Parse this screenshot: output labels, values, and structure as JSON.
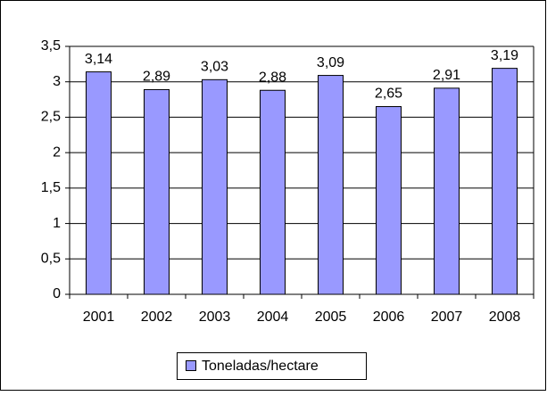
{
  "chart_data": {
    "type": "bar",
    "categories": [
      "2001",
      "2002",
      "2003",
      "2004",
      "2005",
      "2006",
      "2007",
      "2008"
    ],
    "series": [
      {
        "name": "Toneladas/hectare",
        "color": "#9999ff",
        "values": [
          3.14,
          2.89,
          3.03,
          2.88,
          3.09,
          2.65,
          2.91,
          3.19
        ],
        "value_labels": [
          "3,14",
          "2,89",
          "3,03",
          "2,88",
          "3,09",
          "2,65",
          "2,91",
          "3,19"
        ]
      }
    ],
    "ylim": [
      0,
      3.5
    ],
    "yticks": [
      0,
      {
        "value": 0.5,
        "label": "0,5"
      },
      1,
      {
        "value": 1.5,
        "label": "1,5"
      },
      2,
      {
        "value": 2.5,
        "label": "2,5"
      },
      3,
      {
        "value": 3.5,
        "label": "3,5"
      }
    ],
    "grid": true,
    "legend": "bottom"
  }
}
